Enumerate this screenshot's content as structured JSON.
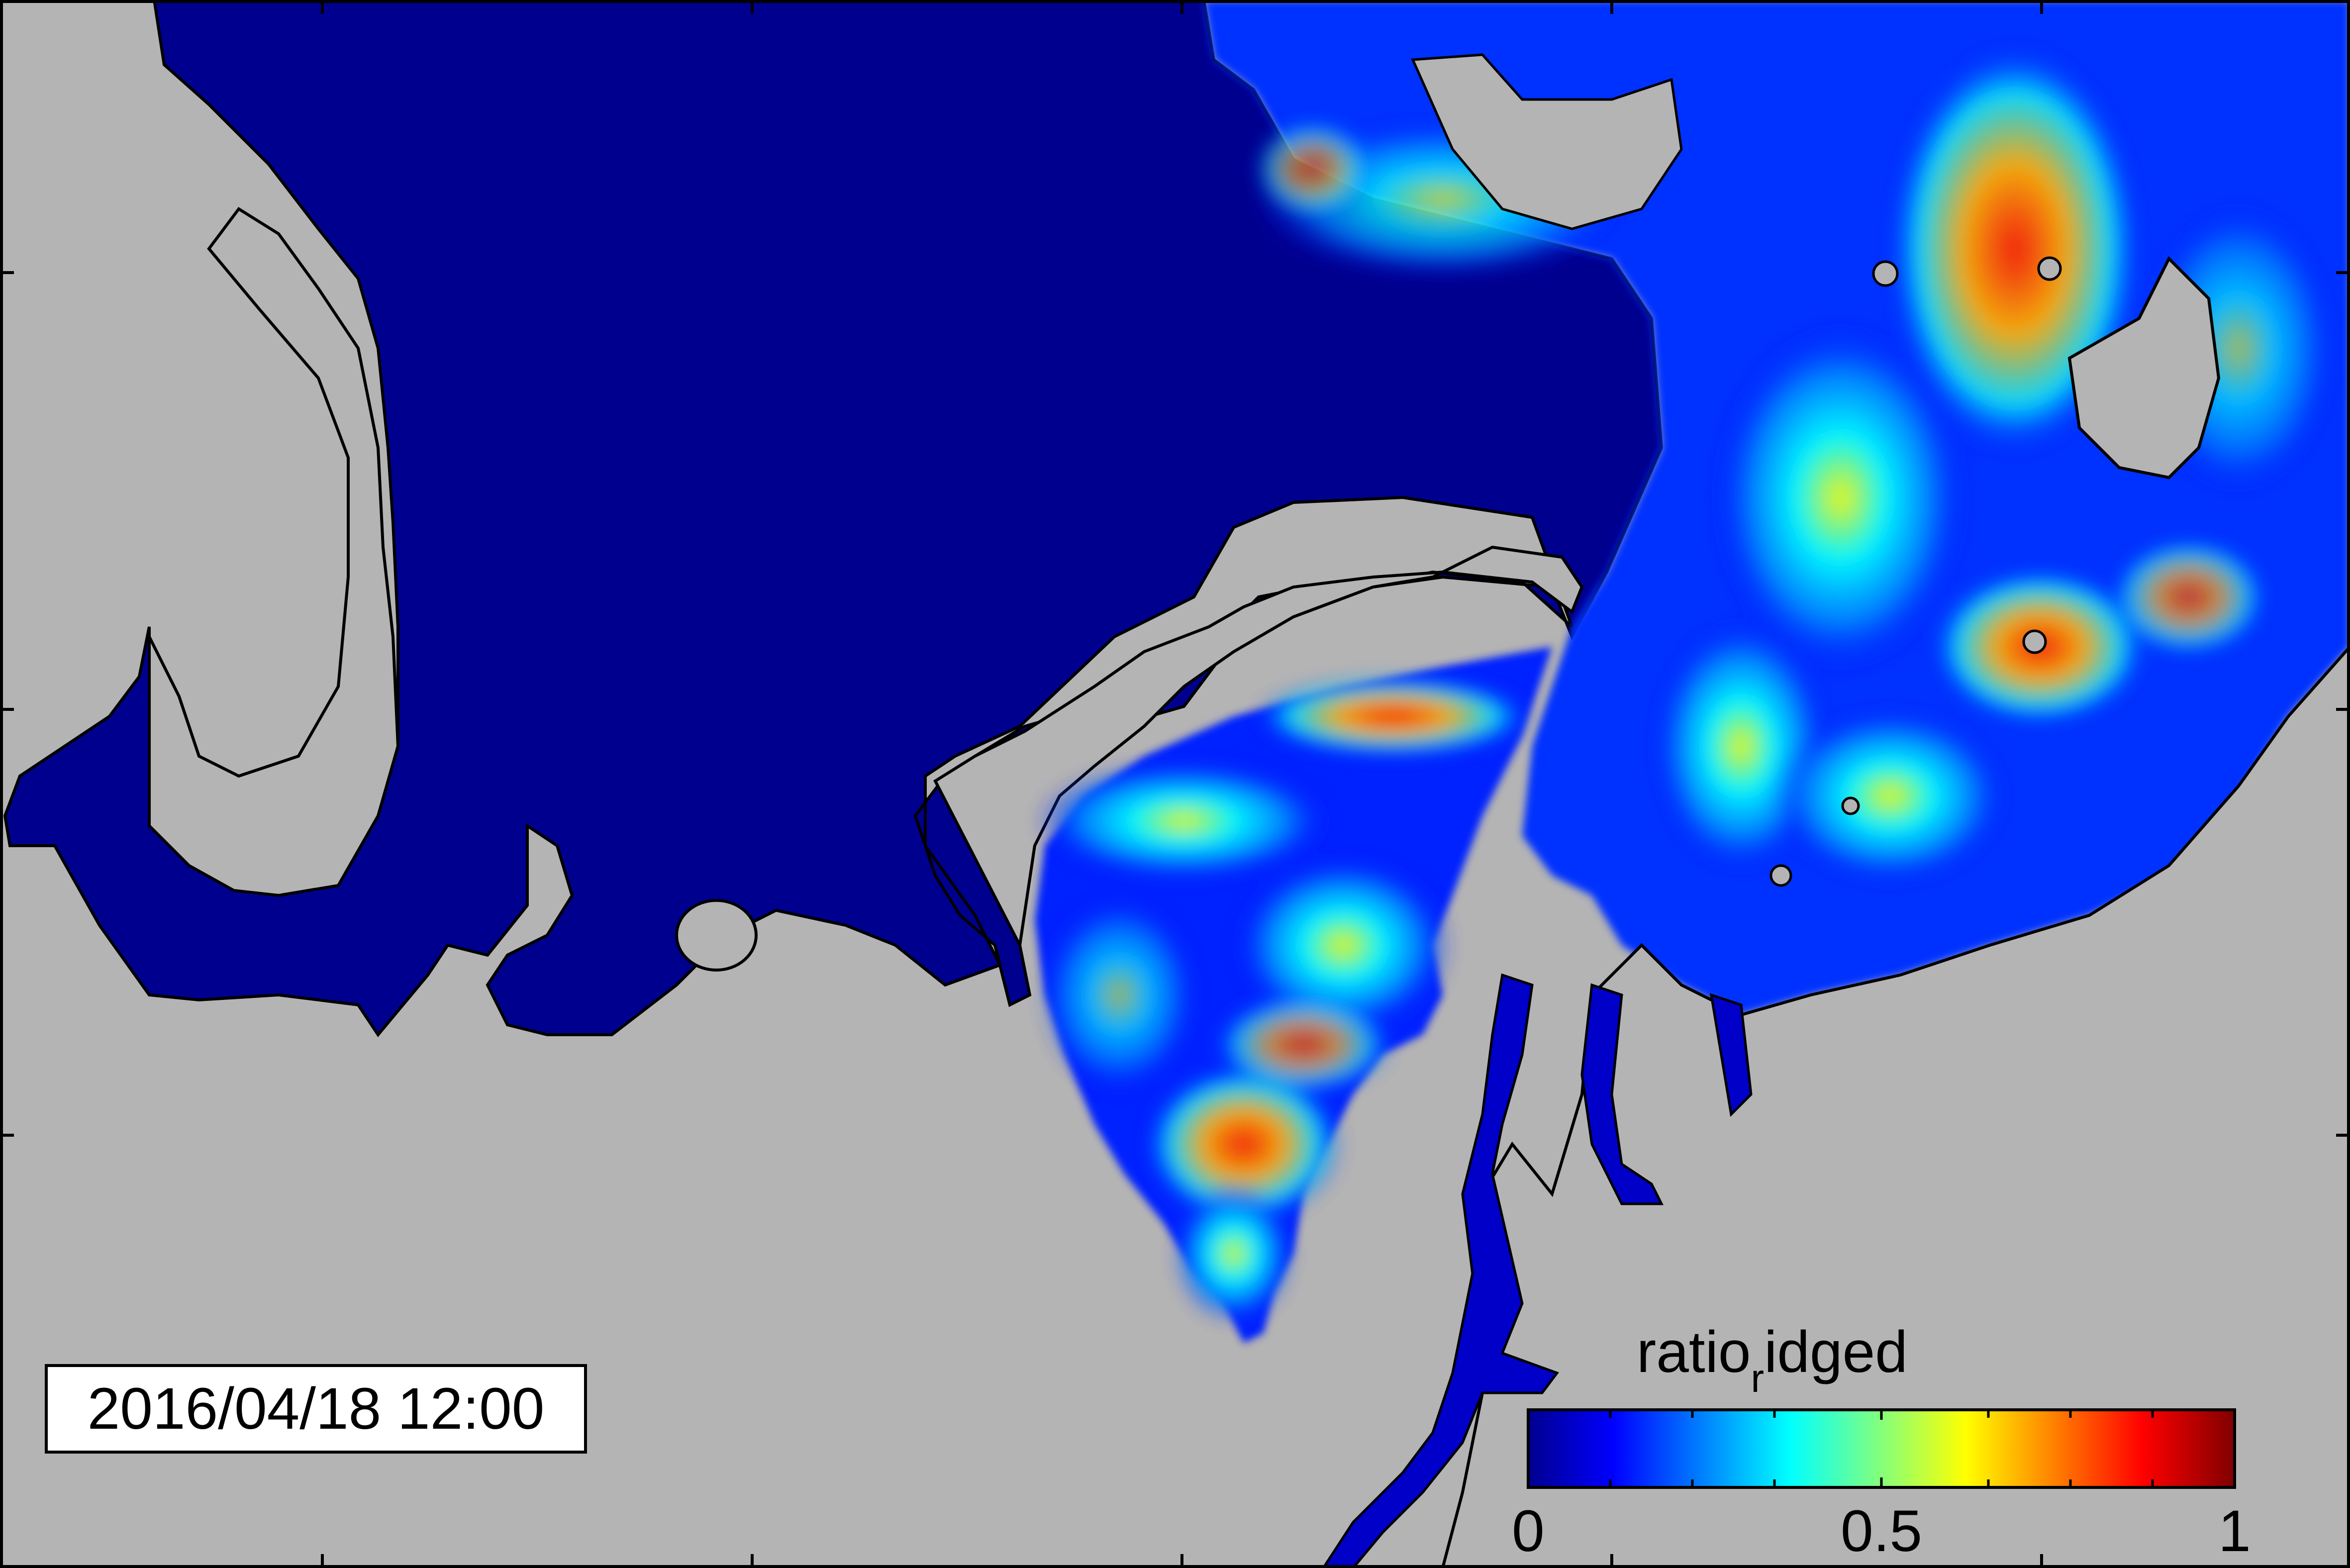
{
  "timestamp": "2016/04/18 12:00",
  "colorbar": {
    "title_main": "ratio",
    "title_sub": "r",
    "title_rest": "idged",
    "min_label": "0",
    "mid_label": "0.5",
    "max_label": "1",
    "range": [
      0,
      1
    ],
    "colormap": "jet",
    "colors": [
      "#00008f",
      "#0000ff",
      "#00ffff",
      "#ffff00",
      "#ff0000",
      "#800000"
    ]
  },
  "colors": {
    "land": "#b4b4b4",
    "open_water_ice_free": "#00008f",
    "frame": "#000000"
  }
}
